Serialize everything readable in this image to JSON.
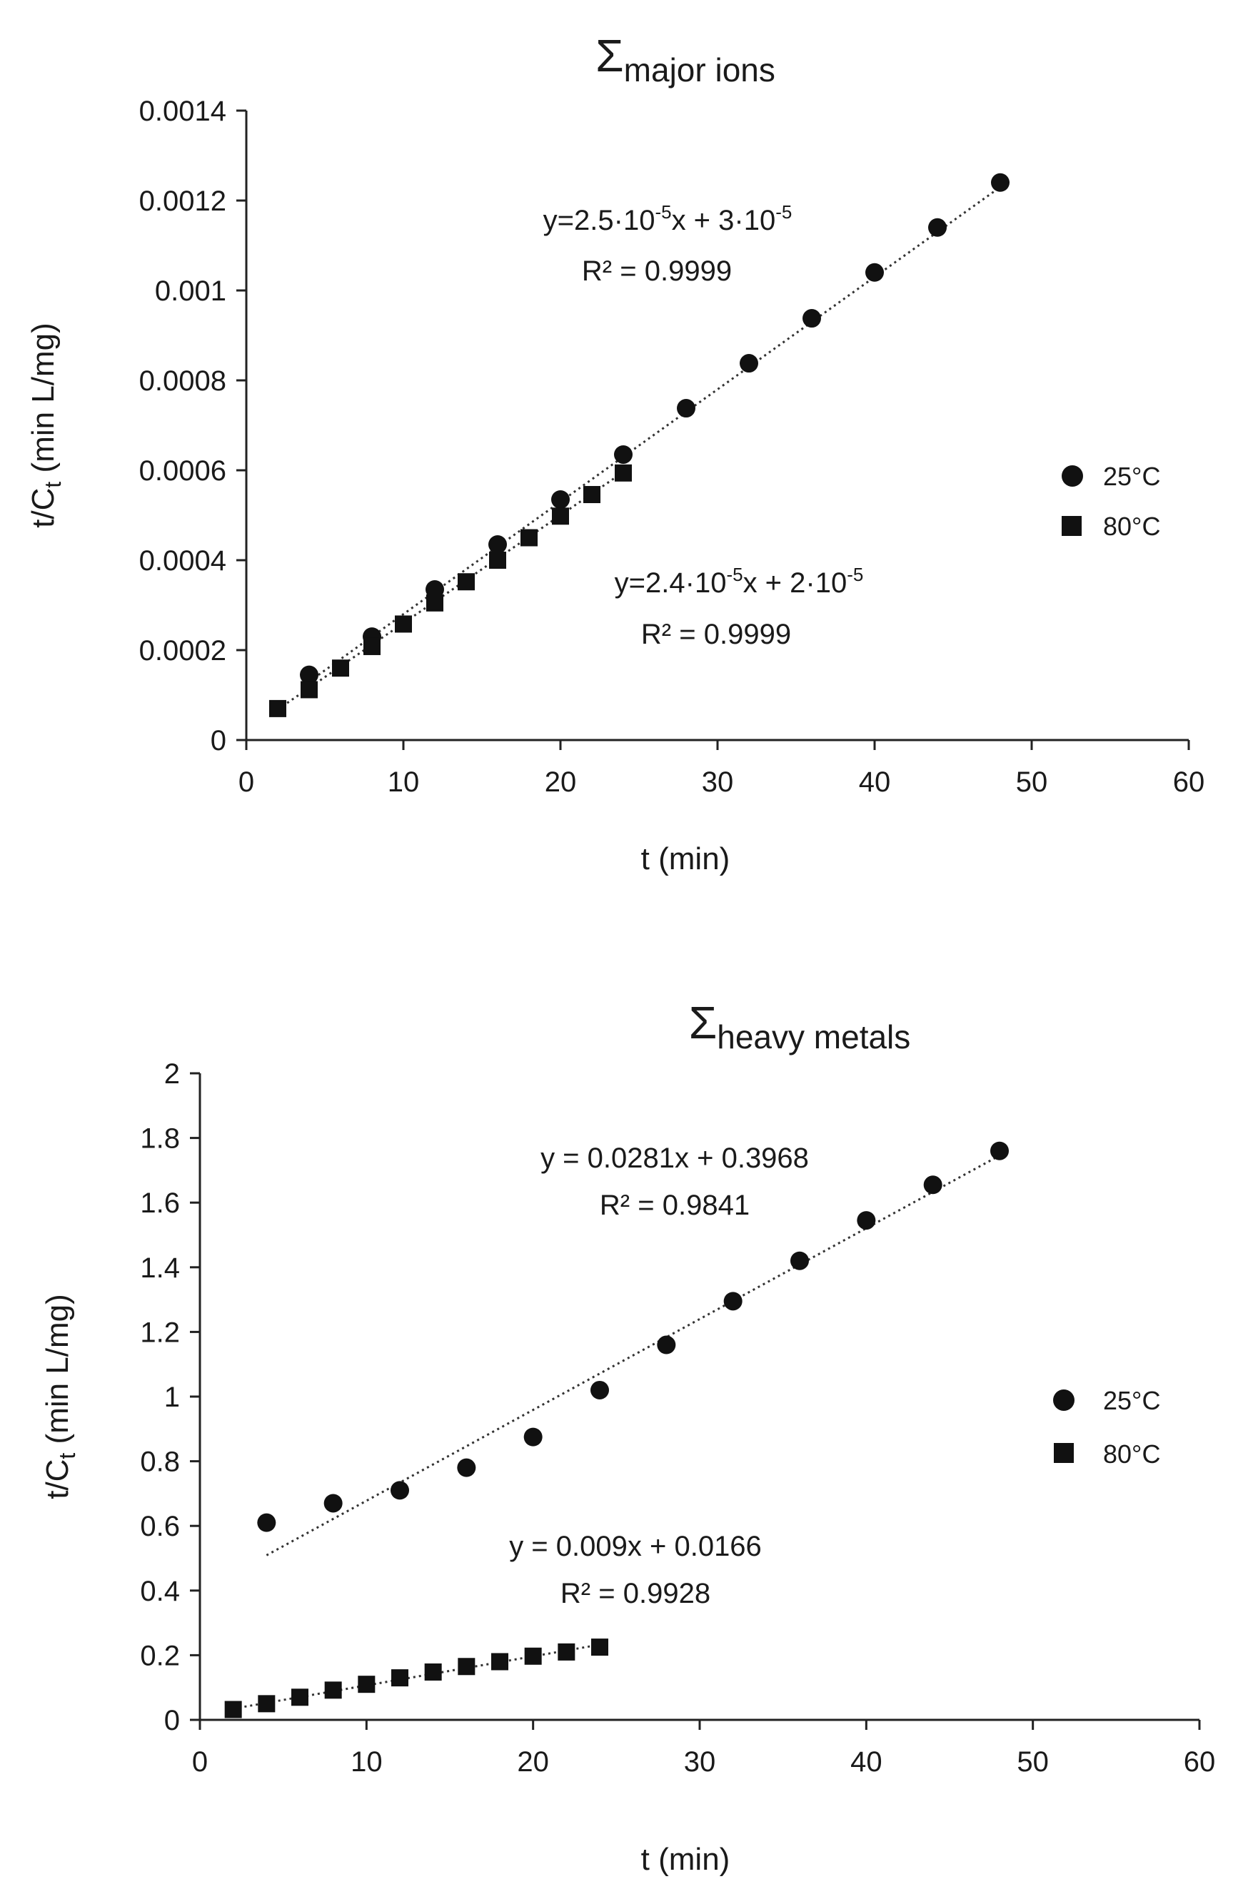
{
  "chart_data": [
    {
      "type": "scatter",
      "title_symbol": "Σ",
      "title_sub": "major ions",
      "xlabel": "t (min)",
      "ylabel_main": "t/C",
      "ylabel_sub": "t",
      "ylabel_unit": " (min L/mg)",
      "xlim": [
        0,
        60
      ],
      "ylim": [
        0,
        0.0014
      ],
      "xticks": [
        0,
        10,
        20,
        30,
        40,
        50,
        60
      ],
      "xtick_labels": [
        "0",
        "10",
        "20",
        "30",
        "40",
        "50",
        "60"
      ],
      "yticks": [
        0,
        0.0002,
        0.0004,
        0.0006,
        0.0008,
        0.001,
        0.0012,
        0.0014
      ],
      "ytick_labels": [
        "0",
        "0.0002",
        "0.0004",
        "0.0006",
        "0.0008",
        "0.001",
        "0.0012",
        "0.0014"
      ],
      "series": [
        {
          "name": "25°C",
          "marker": "circle",
          "x": [
            4,
            8,
            12,
            16,
            20,
            24,
            28,
            32,
            36,
            40,
            44,
            48
          ],
          "y": [
            0.000145,
            0.00023,
            0.000335,
            0.000435,
            0.000535,
            0.000635,
            0.000738,
            0.000838,
            0.000938,
            0.00104,
            0.00114,
            0.00124
          ],
          "trend": {
            "slope": 2.5e-05,
            "intercept": 3e-05,
            "x_range": [
              4,
              48
            ]
          },
          "equation": {
            "text": "y=2.5·10",
            "exp1": "-5",
            "mid": "x + 3·10",
            "exp2": "-5"
          },
          "r2": {
            "text": "R² = 0.9999"
          }
        },
        {
          "name": "80°C",
          "marker": "square",
          "x": [
            2,
            4,
            6,
            8,
            10,
            12,
            14,
            16,
            18,
            20,
            22,
            24
          ],
          "y": [
            7e-05,
            0.000112,
            0.00016,
            0.000208,
            0.000258,
            0.000305,
            0.000352,
            0.0004,
            0.00045,
            0.000498,
            0.000546,
            0.000594
          ],
          "trend": {
            "slope": 2.4e-05,
            "intercept": 2e-05,
            "x_range": [
              2,
              24
            ]
          },
          "equation": {
            "text": "y=2.4·10",
            "exp1": "-5",
            "mid": "x + 2·10",
            "exp2": "-5"
          },
          "r2": {
            "text": "R² = 0.9999"
          }
        }
      ],
      "legend": [
        "25°C",
        "80°C"
      ]
    },
    {
      "type": "scatter",
      "title_symbol": "Σ",
      "title_sub": "heavy metals",
      "xlabel": "t (min)",
      "ylabel_main": "t/C",
      "ylabel_sub": "t",
      "ylabel_unit": " (min L/mg)",
      "xlim": [
        0,
        60
      ],
      "ylim": [
        0,
        2
      ],
      "xticks": [
        0,
        10,
        20,
        30,
        40,
        50,
        60
      ],
      "xtick_labels": [
        "0",
        "10",
        "20",
        "30",
        "40",
        "50",
        "60"
      ],
      "yticks": [
        0,
        0.2,
        0.4,
        0.6,
        0.8,
        1,
        1.2,
        1.4,
        1.6,
        1.8,
        2
      ],
      "ytick_labels": [
        "0",
        "0.2",
        "0.4",
        "0.6",
        "0.8",
        "1",
        "1.2",
        "1.4",
        "1.6",
        "1.8",
        "2"
      ],
      "series": [
        {
          "name": "25°C",
          "marker": "circle",
          "x": [
            4,
            8,
            12,
            16,
            20,
            24,
            28,
            32,
            36,
            40,
            44,
            48
          ],
          "y": [
            0.61,
            0.67,
            0.71,
            0.78,
            0.875,
            1.02,
            1.16,
            1.295,
            1.42,
            1.545,
            1.655,
            1.76
          ],
          "trend": {
            "slope": 0.0281,
            "intercept": 0.3968,
            "x_range": [
              4,
              48
            ]
          },
          "equation": {
            "text": "y = 0.0281x + 0.3968"
          },
          "r2": {
            "text": "R² = 0.9841"
          }
        },
        {
          "name": "80°C",
          "marker": "square",
          "x": [
            2,
            4,
            6,
            8,
            10,
            12,
            14,
            16,
            18,
            20,
            22,
            24
          ],
          "y": [
            0.032,
            0.05,
            0.07,
            0.092,
            0.11,
            0.13,
            0.148,
            0.165,
            0.18,
            0.197,
            0.21,
            0.225
          ],
          "trend": {
            "slope": 0.009,
            "intercept": 0.0166,
            "x_range": [
              2,
              24
            ]
          },
          "equation": {
            "text": "y = 0.009x + 0.0166"
          },
          "r2": {
            "text": "R² = 0.9928"
          }
        }
      ],
      "legend": [
        "25°C",
        "80°C"
      ]
    }
  ]
}
